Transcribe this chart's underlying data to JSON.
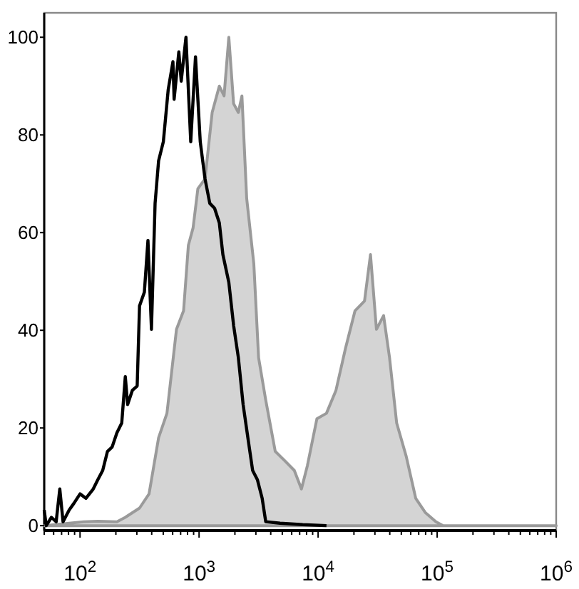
{
  "chart_data": {
    "type": "area",
    "log": "x",
    "xlim": [
      50,
      1000000
    ],
    "ylim": [
      -1,
      105
    ],
    "xticks": [
      {
        "value": 50,
        "label": null
      },
      {
        "value": 60,
        "label": null
      },
      {
        "value": 70,
        "label": null
      },
      {
        "value": 80,
        "label": null
      },
      {
        "value": 90,
        "label": null
      },
      {
        "value": 100,
        "label": "10$^{2}$"
      },
      {
        "value": 200,
        "label": null
      },
      {
        "value": 300,
        "label": null
      },
      {
        "value": 400,
        "label": null
      },
      {
        "value": 500,
        "label": null
      },
      {
        "value": 600,
        "label": null
      },
      {
        "value": 700,
        "label": null
      },
      {
        "value": 800,
        "label": null
      },
      {
        "value": 900,
        "label": null
      },
      {
        "value": 1000,
        "label": "10$^{3}$"
      },
      {
        "value": 2000,
        "label": null
      },
      {
        "value": 3000,
        "label": null
      },
      {
        "value": 4000,
        "label": null
      },
      {
        "value": 5000,
        "label": null
      },
      {
        "value": 6000,
        "label": null
      },
      {
        "value": 7000,
        "label": null
      },
      {
        "value": 8000,
        "label": null
      },
      {
        "value": 9000,
        "label": null
      },
      {
        "value": 10000,
        "label": "10$^{4}$"
      },
      {
        "value": 20000,
        "label": null
      },
      {
        "value": 30000,
        "label": null
      },
      {
        "value": 40000,
        "label": null
      },
      {
        "value": 50000,
        "label": null
      },
      {
        "value": 60000,
        "label": null
      },
      {
        "value": 70000,
        "label": null
      },
      {
        "value": 80000,
        "label": null
      },
      {
        "value": 90000,
        "label": null
      },
      {
        "value": 100000,
        "label": "10$^{5}$"
      },
      {
        "value": 200000,
        "label": null
      },
      {
        "value": 300000,
        "label": null
      },
      {
        "value": 400000,
        "label": null
      },
      {
        "value": 500000,
        "label": null
      },
      {
        "value": 600000,
        "label": null
      },
      {
        "value": 700000,
        "label": null
      },
      {
        "value": 800000,
        "label": null
      },
      {
        "value": 900000,
        "label": null
      },
      {
        "value": 1000000,
        "label": "10$^{6}$"
      }
    ],
    "yticks": [
      0,
      20,
      40,
      60,
      80,
      100
    ],
    "grid": false,
    "series": [
      {
        "color": "#d4d4d4",
        "x": [
          50,
          107,
          141,
          204,
          240,
          316,
          380,
          457,
          537,
          646,
          741,
          813,
          891,
          977,
          1122,
          1288,
          1479,
          1622,
          1778,
          1950,
          2138,
          2291,
          2512,
          2884,
          3162,
          3631,
          4365,
          5248,
          6310,
          7244,
          8128,
          9772,
          11749,
          14125,
          16982,
          20417,
          24547,
          27542,
          30903,
          35481,
          39811,
          45709,
          54954,
          66069,
          79433,
          97724,
          112202,
          1000000
        ],
        "values": [
          0,
          0.8,
          0.9,
          0.8,
          1.7,
          3.6,
          6.5,
          18,
          23,
          40.2,
          44,
          57.4,
          61,
          69,
          71,
          84.6,
          90,
          88,
          100,
          86.4,
          84.6,
          88,
          67,
          53.6,
          34.4,
          25.7,
          15.2,
          13.3,
          11.3,
          7.5,
          12.3,
          21.9,
          23,
          27.7,
          36.3,
          44,
          46,
          55.5,
          40.2,
          43,
          34.4,
          21,
          14.2,
          5.6,
          2.7,
          0.8,
          0,
          0
        ]
      },
      {
        "type": "line",
        "color": "#000000",
        "x": [
          50,
          52,
          57.5,
          63,
          67.6,
          72,
          81,
          89,
          100,
          112,
          129,
          141,
          155,
          170,
          186,
          204,
          224,
          240,
          251,
          275,
          302,
          316,
          347,
          372,
          398,
          427,
          457,
          501,
          550,
          603,
          617,
          676,
          708,
          776,
          851,
          933,
          1023,
          1122,
          1230,
          1349,
          1479,
          1585,
          1778,
          1950,
          2138,
          2344,
          2570,
          2818,
          3090,
          3388,
          3631,
          4786,
          7413,
          11749
        ],
        "values": [
          3.2,
          0,
          1.7,
          0.8,
          7.5,
          0.8,
          3.2,
          4.6,
          6.5,
          5.6,
          7.5,
          9.4,
          11.3,
          15.2,
          16.1,
          19,
          21,
          30.5,
          24.8,
          27.7,
          28.6,
          45,
          47.8,
          58.4,
          40.2,
          66,
          74.7,
          78.6,
          89.2,
          95,
          87.3,
          97,
          91,
          100,
          78.6,
          96,
          78.6,
          71,
          66,
          65,
          62,
          55.5,
          49.8,
          41,
          34.4,
          24.8,
          18,
          11.3,
          9.4,
          5.6,
          0.8,
          0.5,
          0.2,
          0
        ]
      }
    ]
  }
}
